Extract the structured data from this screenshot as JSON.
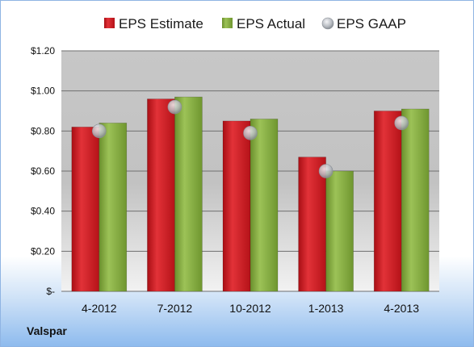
{
  "chart_data": {
    "type": "bar",
    "categories": [
      "4-2012",
      "7-2012",
      "10-2012",
      "1-2013",
      "4-2013"
    ],
    "series": [
      {
        "name": "EPS Estimate",
        "kind": "bar",
        "color": "#c8171d",
        "values": [
          0.82,
          0.96,
          0.85,
          0.67,
          0.9
        ]
      },
      {
        "name": "EPS Actual",
        "kind": "bar",
        "color": "#7ea43a",
        "values": [
          0.84,
          0.97,
          0.86,
          0.6,
          0.91
        ]
      },
      {
        "name": "EPS GAAP",
        "kind": "marker",
        "color": "#b8bcc2",
        "values": [
          0.8,
          0.92,
          0.79,
          0.6,
          0.84
        ]
      }
    ],
    "ylim": [
      0,
      1.2
    ],
    "yticks": [
      {
        "value": 1.2,
        "label": "$1.20"
      },
      {
        "value": 1.0,
        "label": "$1.00"
      },
      {
        "value": 0.8,
        "label": "$0.80"
      },
      {
        "value": 0.6,
        "label": "$0.60"
      },
      {
        "value": 0.4,
        "label": "$0.40"
      },
      {
        "value": 0.2,
        "label": "$0.20"
      },
      {
        "value": 0,
        "label": "$-"
      }
    ],
    "grid": true,
    "legend_position": "top"
  },
  "footer": {
    "company": "Valspar"
  }
}
